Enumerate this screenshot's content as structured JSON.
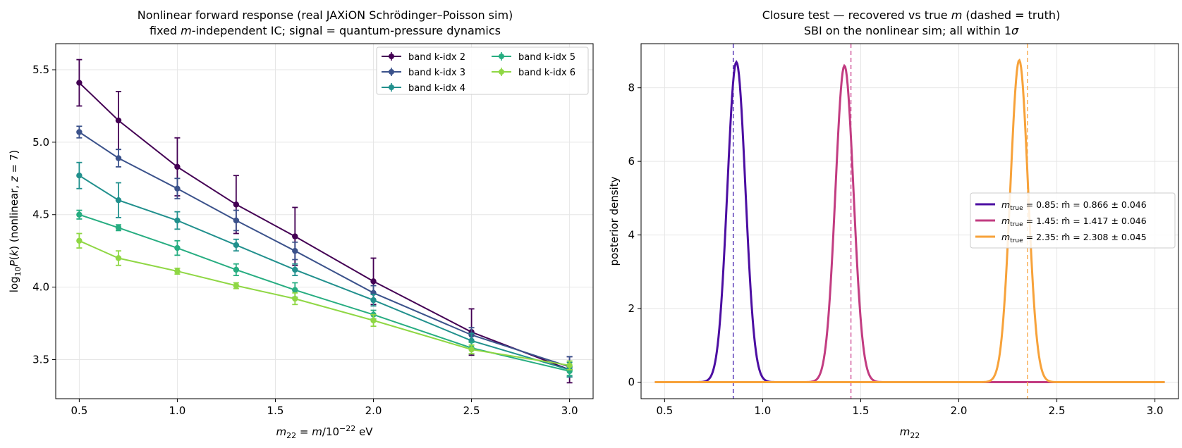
{
  "chart_data": [
    {
      "type": "line",
      "title_line1": "Nonlinear forward response  (real JAXiON Schrödinger–Poisson sim)",
      "title_line2": "fixed m-independent IC; signal = quantum-pressure dynamics",
      "xlabel": "m₂₂ = m/10⁻²² eV",
      "ylabel": "log₁₀P(k)  (nonlinear, z = 7)",
      "xlim": [
        0.38,
        3.12
      ],
      "ylim": [
        3.23,
        5.68
      ],
      "xticks": [
        0.5,
        1.0,
        1.5,
        2.0,
        2.5,
        3.0
      ],
      "xtick_labels": [
        "0.5",
        "1.0",
        "1.5",
        "2.0",
        "2.5",
        "3.0"
      ],
      "yticks": [
        3.5,
        4.0,
        4.5,
        5.0,
        5.5
      ],
      "ytick_labels": [
        "3.5",
        "4.0",
        "4.5",
        "5.0",
        "5.5"
      ],
      "grid": true,
      "legend_position": "upper-right",
      "x": [
        0.5,
        0.7,
        1.0,
        1.3,
        1.6,
        2.0,
        2.5,
        3.0
      ],
      "series": [
        {
          "name": "band k-idx 2",
          "color": "#440154",
          "values": [
            5.41,
            5.15,
            4.83,
            4.57,
            4.35,
            4.04,
            3.69,
            3.43
          ],
          "errors": [
            0.16,
            0.2,
            0.2,
            0.2,
            0.2,
            0.16,
            0.16,
            0.09
          ]
        },
        {
          "name": "band k-idx 3",
          "color": "#3b528b",
          "values": [
            5.07,
            4.89,
            4.68,
            4.46,
            4.25,
            3.96,
            3.67,
            3.45
          ],
          "errors": [
            0.04,
            0.06,
            0.07,
            0.07,
            0.06,
            0.05,
            0.05,
            0.07
          ]
        },
        {
          "name": "band k-idx 4",
          "color": "#21908d",
          "values": [
            4.77,
            4.6,
            4.46,
            4.29,
            4.12,
            3.91,
            3.63,
            3.43
          ],
          "errors": [
            0.09,
            0.12,
            0.06,
            0.04,
            0.04,
            0.04,
            0.05,
            0.05
          ]
        },
        {
          "name": "band k-idx 5",
          "color": "#27ad81",
          "values": [
            4.5,
            4.41,
            4.27,
            4.12,
            3.98,
            3.81,
            3.58,
            3.42
          ],
          "errors": [
            0.03,
            0.02,
            0.05,
            0.04,
            0.05,
            0.03,
            0.04,
            0.03
          ]
        },
        {
          "name": "band k-idx 6",
          "color": "#8fd744",
          "values": [
            4.32,
            4.2,
            4.11,
            4.01,
            3.92,
            3.77,
            3.57,
            3.46
          ],
          "errors": [
            0.05,
            0.05,
            0.02,
            0.02,
            0.04,
            0.04,
            0.03,
            0.03
          ]
        }
      ]
    },
    {
      "type": "line",
      "title_line1": "Closure test — recovered vs true m (dashed = truth)",
      "title_line2": "SBI on the nonlinear sim; all within 1σ",
      "xlabel": "m₂₂",
      "ylabel": "posterior density",
      "xlim": [
        0.38,
        3.12
      ],
      "ylim": [
        -0.45,
        9.2
      ],
      "xticks": [
        0.5,
        1.0,
        1.5,
        2.0,
        2.5,
        3.0
      ],
      "xtick_labels": [
        "0.5",
        "1.0",
        "1.5",
        "2.0",
        "2.5",
        "3.0"
      ],
      "yticks": [
        0,
        2,
        4,
        6,
        8
      ],
      "ytick_labels": [
        "0",
        "2",
        "4",
        "6",
        "8"
      ],
      "grid": true,
      "legend_position": "center-right",
      "curve_x_range": [
        0.45,
        3.05
      ],
      "series": [
        {
          "name": "m_true = 0.85:  m̂ = 0.866 ± 0.046",
          "legend_left": "m",
          "legend_sub": "true",
          "legend_right": " = 0.85:  m̂ = 0.866 ± 0.046",
          "true": 0.85,
          "mean": 0.866,
          "sigma": 0.046,
          "peak": 8.7,
          "color": "#4c0ea2",
          "dash_color": "#5a3bb8"
        },
        {
          "name": "m_true = 1.45:  m̂ = 1.417 ± 0.046",
          "legend_left": "m",
          "legend_sub": "true",
          "legend_right": " = 1.45:  m̂ = 1.417 ± 0.046",
          "true": 1.45,
          "mean": 1.417,
          "sigma": 0.046,
          "peak": 8.6,
          "color": "#c23c81",
          "dash_color": "#d45fa0"
        },
        {
          "name": "m_true = 2.35:  m̂ = 2.308 ± 0.045",
          "legend_left": "m",
          "legend_sub": "true",
          "legend_right": " = 2.35:  m̂ = 2.308 ± 0.045",
          "true": 2.35,
          "mean": 2.308,
          "sigma": 0.045,
          "peak": 8.75,
          "color": "#f7a23a",
          "dash_color": "#f8b05a"
        }
      ]
    }
  ]
}
